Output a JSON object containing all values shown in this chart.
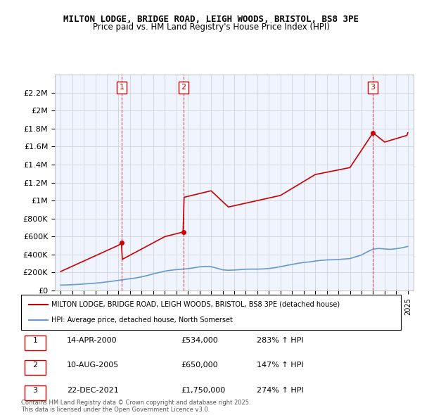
{
  "title": "MILTON LODGE, BRIDGE ROAD, LEIGH WOODS, BRISTOL, BS8 3PE",
  "subtitle": "Price paid vs. HM Land Registry's House Price Index (HPI)",
  "legend_line1": "MILTON LODGE, BRIDGE ROAD, LEIGH WOODS, BRISTOL, BS8 3PE (detached house)",
  "legend_line2": "HPI: Average price, detached house, North Somerset",
  "footer": "Contains HM Land Registry data © Crown copyright and database right 2025.\nThis data is licensed under the Open Government Licence v3.0.",
  "sale_labels": [
    "1",
    "2",
    "3"
  ],
  "sale_dates": [
    "14-APR-2000",
    "10-AUG-2005",
    "22-DEC-2021"
  ],
  "sale_prices": [
    "£534,000",
    "£650,000",
    "£1,750,000"
  ],
  "sale_hpi": [
    "283% ↑ HPI",
    "147% ↑ HPI",
    "274% ↑ HPI"
  ],
  "sale_years": [
    2000.29,
    2005.61,
    2021.98
  ],
  "sale_values": [
    534000,
    650000,
    1750000
  ],
  "red_color": "#cc0000",
  "blue_color": "#6699cc",
  "background_color": "#ffffff",
  "grid_color": "#cccccc",
  "ylim": [
    0,
    2400000
  ],
  "xlim": [
    1994.5,
    2025.5
  ],
  "ytick_values": [
    0,
    200000,
    400000,
    600000,
    800000,
    1000000,
    1200000,
    1400000,
    1600000,
    1800000,
    2000000,
    2200000
  ],
  "ytick_labels": [
    "£0",
    "£200K",
    "£400K",
    "£600K",
    "£800K",
    "£1M",
    "£1.2M",
    "£1.4M",
    "£1.6M",
    "£1.8M",
    "£2M",
    "£2.2M"
  ],
  "xtick_values": [
    1995,
    1996,
    1997,
    1998,
    1999,
    2000,
    2001,
    2002,
    2003,
    2004,
    2005,
    2006,
    2007,
    2008,
    2009,
    2010,
    2011,
    2012,
    2013,
    2014,
    2015,
    2016,
    2017,
    2018,
    2019,
    2020,
    2021,
    2022,
    2023,
    2024,
    2025
  ],
  "red_x": [
    1995.0,
    1995.08,
    1995.17,
    1995.25,
    1995.33,
    1995.42,
    1995.5,
    1995.58,
    1995.67,
    1995.75,
    1995.83,
    1995.92,
    1996.0,
    1996.08,
    1996.17,
    1996.25,
    1996.33,
    1996.42,
    1996.5,
    1996.58,
    1996.67,
    1996.75,
    1996.83,
    1996.92,
    1997.0,
    1997.08,
    1997.17,
    1997.25,
    1997.33,
    1997.42,
    1997.5,
    1997.58,
    1997.67,
    1997.75,
    1997.83,
    1997.92,
    1998.0,
    1998.08,
    1998.17,
    1998.25,
    1998.33,
    1998.42,
    1998.5,
    1998.58,
    1998.67,
    1998.75,
    1998.83,
    1998.92,
    1999.0,
    1999.08,
    1999.17,
    1999.25,
    1999.33,
    1999.42,
    1999.5,
    1999.58,
    1999.67,
    1999.75,
    1999.83,
    1999.92,
    2000.0,
    2000.08,
    2000.17,
    2000.25,
    2000.33,
    2000.42,
    2000.5,
    2000.58,
    2000.67,
    2000.75,
    2000.83,
    2000.92,
    2001.0,
    2001.08,
    2001.17,
    2001.25,
    2001.33,
    2001.42,
    2001.5,
    2001.58,
    2001.67,
    2001.75,
    2001.83,
    2001.92,
    2002.0,
    2002.08,
    2002.17,
    2002.25,
    2002.33,
    2002.42,
    2002.5,
    2002.58,
    2002.67,
    2002.75,
    2002.83,
    2002.92,
    2003.0,
    2003.08,
    2003.17,
    2003.25,
    2003.33,
    2003.42,
    2003.5,
    2003.58,
    2003.67,
    2003.75,
    2003.83,
    2003.92,
    2004.0,
    2004.08,
    2004.17,
    2004.25,
    2004.33,
    2004.42,
    2004.5,
    2004.58,
    2004.67,
    2004.75,
    2004.83,
    2004.92,
    2005.0,
    2005.08,
    2005.17,
    2005.25,
    2005.33,
    2005.42,
    2005.5,
    2005.58,
    2005.67,
    2005.75,
    2005.83,
    2005.92,
    2006.0,
    2006.08,
    2006.17,
    2006.25,
    2006.33,
    2006.42,
    2006.5,
    2006.58,
    2006.67,
    2006.75,
    2006.83,
    2006.92,
    2007.0,
    2007.08,
    2007.17,
    2007.25,
    2007.33,
    2007.42,
    2007.5,
    2007.58,
    2007.67,
    2007.75,
    2007.83,
    2007.92,
    2008.0,
    2008.08,
    2008.17,
    2008.25,
    2008.33,
    2008.42,
    2008.5,
    2008.58,
    2008.67,
    2008.75,
    2008.83,
    2008.92,
    2009.0,
    2009.08,
    2009.17,
    2009.25,
    2009.33,
    2009.42,
    2009.5,
    2009.58,
    2009.67,
    2009.75,
    2009.83,
    2009.92,
    2010.0,
    2010.08,
    2010.17,
    2010.25,
    2010.33,
    2010.42,
    2010.5,
    2010.58,
    2010.67,
    2010.75,
    2010.83,
    2010.92,
    2011.0,
    2011.08,
    2011.17,
    2011.25,
    2011.33,
    2011.42,
    2011.5,
    2011.58,
    2011.67,
    2011.75,
    2011.83,
    2011.92,
    2012.0,
    2012.08,
    2012.17,
    2012.25,
    2012.33,
    2012.42,
    2012.5,
    2012.58,
    2012.67,
    2012.75,
    2012.83,
    2012.92,
    2013.0,
    2013.08,
    2013.17,
    2013.25,
    2013.33,
    2013.42,
    2013.5,
    2013.58,
    2013.67,
    2013.75,
    2013.83,
    2013.92,
    2014.0,
    2014.08,
    2014.17,
    2014.25,
    2014.33,
    2014.42,
    2014.5,
    2014.58,
    2014.67,
    2014.75,
    2014.83,
    2014.92,
    2015.0,
    2015.08,
    2015.17,
    2015.25,
    2015.33,
    2015.42,
    2015.5,
    2015.58,
    2015.67,
    2015.75,
    2015.83,
    2015.92,
    2016.0,
    2016.08,
    2016.17,
    2016.25,
    2016.33,
    2016.42,
    2016.5,
    2016.58,
    2016.67,
    2016.75,
    2016.83,
    2016.92,
    2017.0,
    2017.08,
    2017.17,
    2017.25,
    2017.33,
    2017.42,
    2017.5,
    2017.58,
    2017.67,
    2017.75,
    2017.83,
    2017.92,
    2018.0,
    2018.08,
    2018.17,
    2018.25,
    2018.33,
    2018.42,
    2018.5,
    2018.58,
    2018.67,
    2018.75,
    2018.83,
    2018.92,
    2019.0,
    2019.08,
    2019.17,
    2019.25,
    2019.33,
    2019.42,
    2019.5,
    2019.58,
    2019.67,
    2019.75,
    2019.83,
    2019.92,
    2020.0,
    2020.08,
    2020.17,
    2020.25,
    2020.33,
    2020.42,
    2020.5,
    2020.58,
    2020.67,
    2020.75,
    2020.83,
    2020.92,
    2021.0,
    2021.08,
    2021.17,
    2021.25,
    2021.33,
    2021.42,
    2021.5,
    2021.58,
    2021.67,
    2021.75,
    2021.83,
    2021.92,
    2022.0,
    2022.08,
    2022.17,
    2022.25,
    2022.33,
    2022.42,
    2022.5,
    2022.58,
    2022.67,
    2022.75,
    2022.83,
    2022.92,
    2023.0,
    2023.08,
    2023.17,
    2023.25,
    2023.33,
    2023.42,
    2023.5,
    2023.58,
    2023.67,
    2023.75,
    2023.83,
    2023.92,
    2024.0,
    2024.08,
    2024.17,
    2024.25,
    2024.33,
    2024.42,
    2024.5,
    2024.58,
    2024.67,
    2024.75,
    2024.83,
    2024.92,
    2025.0
  ],
  "red_y_base": 534000,
  "red_sale_year": 2000.29,
  "hpi_index_at_sale1": 100,
  "blue_x": [
    1995.0,
    1995.5,
    1996.0,
    1996.5,
    1997.0,
    1997.5,
    1998.0,
    1998.5,
    1999.0,
    1999.5,
    2000.0,
    2000.5,
    2001.0,
    2001.5,
    2002.0,
    2002.5,
    2003.0,
    2003.5,
    2004.0,
    2004.5,
    2005.0,
    2005.5,
    2006.0,
    2006.5,
    2007.0,
    2007.5,
    2008.0,
    2008.5,
    2009.0,
    2009.5,
    2010.0,
    2010.5,
    2011.0,
    2011.5,
    2012.0,
    2012.5,
    2013.0,
    2013.5,
    2014.0,
    2014.5,
    2015.0,
    2015.5,
    2016.0,
    2016.5,
    2017.0,
    2017.5,
    2018.0,
    2018.5,
    2019.0,
    2019.5,
    2020.0,
    2020.5,
    2021.0,
    2021.5,
    2022.0,
    2022.5,
    2023.0,
    2023.5,
    2024.0,
    2024.5,
    2025.0
  ],
  "blue_y": [
    60000,
    62000,
    65000,
    68000,
    72000,
    77000,
    82000,
    88000,
    96000,
    104000,
    113000,
    122000,
    131000,
    140000,
    152000,
    167000,
    185000,
    200000,
    215000,
    225000,
    232000,
    237000,
    243000,
    252000,
    263000,
    268000,
    265000,
    248000,
    230000,
    225000,
    228000,
    232000,
    237000,
    238000,
    238000,
    240000,
    245000,
    253000,
    265000,
    278000,
    290000,
    302000,
    312000,
    318000,
    328000,
    335000,
    340000,
    342000,
    345000,
    350000,
    355000,
    375000,
    395000,
    430000,
    460000,
    468000,
    462000,
    458000,
    465000,
    475000,
    490000
  ]
}
